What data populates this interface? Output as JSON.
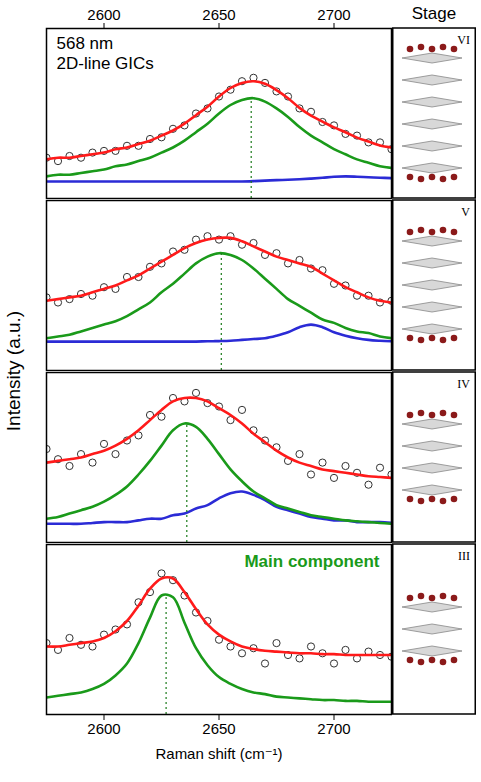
{
  "y_label": "Intensity (a.u.)",
  "header": "Stage",
  "chart_data": [
    {
      "type": "line",
      "stage": "VI",
      "tick_labels": "x",
      "annotations": [
        {
          "text": "568 nm"
        },
        {
          "text": "2D-line GICs"
        }
      ],
      "xlim": [
        2575,
        2725
      ],
      "xticks": [
        2600,
        2650,
        2700
      ],
      "ylim": [
        0,
        1
      ],
      "peak_x": 2664,
      "peak_y": 0.59,
      "x": [
        2575,
        2580,
        2585,
        2590,
        2595,
        2600,
        2605,
        2610,
        2615,
        2620,
        2625,
        2630,
        2635,
        2640,
        2645,
        2650,
        2655,
        2660,
        2665,
        2670,
        2675,
        2680,
        2685,
        2690,
        2695,
        2700,
        2705,
        2710,
        2715,
        2720,
        2725
      ],
      "series": [
        {
          "type": "line",
          "color": "#2b2bd6",
          "values": [
            0.1,
            0.1,
            0.1,
            0.1,
            0.1,
            0.1,
            0.1,
            0.1,
            0.1,
            0.1,
            0.1,
            0.1,
            0.1,
            0.1,
            0.1,
            0.1,
            0.1,
            0.1,
            0.102,
            0.105,
            0.108,
            0.11,
            0.113,
            0.117,
            0.122,
            0.128,
            0.13,
            0.128,
            0.125,
            0.122,
            0.12
          ]
        },
        {
          "type": "line",
          "color": "#1a9a1a",
          "values": [
            0.13,
            0.14,
            0.14,
            0.15,
            0.16,
            0.17,
            0.19,
            0.2,
            0.22,
            0.24,
            0.27,
            0.3,
            0.34,
            0.39,
            0.44,
            0.5,
            0.55,
            0.58,
            0.59,
            0.57,
            0.53,
            0.48,
            0.42,
            0.37,
            0.33,
            0.29,
            0.26,
            0.23,
            0.21,
            0.19,
            0.18
          ]
        },
        {
          "type": "scatter",
          "marker": "circle",
          "color": "#333333",
          "values": [
            0.24,
            0.22,
            0.25,
            0.24,
            0.27,
            0.28,
            0.28,
            0.31,
            0.31,
            0.35,
            0.36,
            0.41,
            0.43,
            0.5,
            0.53,
            0.6,
            0.64,
            0.69,
            0.71,
            0.68,
            0.63,
            0.6,
            0.53,
            0.51,
            0.45,
            0.43,
            0.38,
            0.37,
            0.33,
            0.33,
            0.29
          ]
        },
        {
          "type": "line",
          "color": "#ff1a1a",
          "values": [
            0.23,
            0.24,
            0.24,
            0.25,
            0.26,
            0.27,
            0.29,
            0.3,
            0.32,
            0.34,
            0.37,
            0.4,
            0.44,
            0.49,
            0.54,
            0.6,
            0.65,
            0.68,
            0.69,
            0.675,
            0.638,
            0.59,
            0.533,
            0.487,
            0.452,
            0.418,
            0.39,
            0.358,
            0.335,
            0.312,
            0.3
          ]
        }
      ]
    },
    {
      "type": "line",
      "stage": "V",
      "tick_labels": "x",
      "xlim": [
        2575,
        2725
      ],
      "xticks": [
        2600,
        2650,
        2700
      ],
      "ylim": [
        0,
        1
      ],
      "peak_x": 2651,
      "peak_y": 0.69,
      "x": [
        2575,
        2580,
        2585,
        2590,
        2595,
        2600,
        2605,
        2610,
        2615,
        2620,
        2625,
        2630,
        2635,
        2640,
        2645,
        2650,
        2655,
        2660,
        2665,
        2670,
        2675,
        2680,
        2685,
        2690,
        2695,
        2700,
        2705,
        2710,
        2715,
        2720,
        2725
      ],
      "series": [
        {
          "type": "line",
          "color": "#2b2bd6",
          "values": [
            0.17,
            0.17,
            0.17,
            0.17,
            0.17,
            0.17,
            0.17,
            0.17,
            0.17,
            0.17,
            0.17,
            0.17,
            0.17,
            0.17,
            0.172,
            0.173,
            0.175,
            0.18,
            0.185,
            0.19,
            0.205,
            0.225,
            0.255,
            0.27,
            0.255,
            0.225,
            0.205,
            0.19,
            0.18,
            0.175,
            0.172
          ]
        },
        {
          "type": "line",
          "color": "#1a9a1a",
          "values": [
            0.19,
            0.2,
            0.21,
            0.23,
            0.25,
            0.27,
            0.29,
            0.32,
            0.36,
            0.4,
            0.46,
            0.51,
            0.57,
            0.63,
            0.67,
            0.69,
            0.68,
            0.65,
            0.6,
            0.54,
            0.48,
            0.42,
            0.38,
            0.34,
            0.3,
            0.28,
            0.25,
            0.23,
            0.22,
            0.2,
            0.19
          ]
        },
        {
          "type": "scatter",
          "marker": "circle",
          "color": "#333333",
          "values": [
            0.43,
            0.4,
            0.42,
            0.45,
            0.44,
            0.49,
            0.48,
            0.55,
            0.55,
            0.61,
            0.63,
            0.7,
            0.71,
            0.77,
            0.79,
            0.77,
            0.79,
            0.74,
            0.75,
            0.68,
            0.69,
            0.63,
            0.65,
            0.6,
            0.59,
            0.51,
            0.5,
            0.44,
            0.44,
            0.4,
            0.41
          ]
        },
        {
          "type": "line",
          "color": "#ff1a1a",
          "values": [
            0.41,
            0.42,
            0.43,
            0.44,
            0.46,
            0.48,
            0.5,
            0.53,
            0.56,
            0.6,
            0.64,
            0.68,
            0.72,
            0.75,
            0.77,
            0.78,
            0.78,
            0.76,
            0.73,
            0.7,
            0.67,
            0.65,
            0.63,
            0.61,
            0.57,
            0.53,
            0.49,
            0.46,
            0.43,
            0.41,
            0.4
          ]
        }
      ]
    },
    {
      "type": "line",
      "stage": "IV",
      "tick_labels": "x",
      "xlim": [
        2575,
        2725
      ],
      "xticks": [
        2600,
        2650,
        2700
      ],
      "ylim": [
        0,
        1
      ],
      "peak_x": 2636,
      "peak_y": 0.7,
      "x": [
        2575,
        2580,
        2585,
        2590,
        2595,
        2600,
        2605,
        2610,
        2615,
        2620,
        2625,
        2630,
        2635,
        2640,
        2645,
        2650,
        2655,
        2660,
        2665,
        2670,
        2675,
        2680,
        2685,
        2690,
        2695,
        2700,
        2705,
        2710,
        2715,
        2720,
        2725
      ],
      "series": [
        {
          "type": "line",
          "color": "#2b2bd6",
          "values": [
            0.11,
            0.11,
            0.11,
            0.11,
            0.115,
            0.12,
            0.12,
            0.12,
            0.13,
            0.14,
            0.14,
            0.16,
            0.17,
            0.2,
            0.22,
            0.26,
            0.29,
            0.3,
            0.28,
            0.25,
            0.21,
            0.19,
            0.17,
            0.15,
            0.14,
            0.13,
            0.13,
            0.12,
            0.12,
            0.12,
            0.115
          ]
        },
        {
          "type": "line",
          "color": "#1a9a1a",
          "values": [
            0.14,
            0.15,
            0.17,
            0.19,
            0.21,
            0.24,
            0.28,
            0.33,
            0.4,
            0.48,
            0.57,
            0.66,
            0.7,
            0.68,
            0.61,
            0.52,
            0.43,
            0.36,
            0.3,
            0.26,
            0.22,
            0.2,
            0.18,
            0.16,
            0.15,
            0.14,
            0.13,
            0.125,
            0.12,
            0.115,
            0.11
          ]
        },
        {
          "type": "scatter",
          "marker": "circle",
          "color": "#333333",
          "values": [
            0.55,
            0.49,
            0.45,
            0.52,
            0.47,
            0.58,
            0.52,
            0.6,
            0.63,
            0.75,
            0.74,
            0.85,
            0.83,
            0.88,
            0.82,
            0.8,
            0.72,
            0.78,
            0.66,
            0.6,
            0.56,
            0.48,
            0.52,
            0.4,
            0.47,
            0.38,
            0.45,
            0.41,
            0.34,
            0.44,
            0.4
          ]
        },
        {
          "type": "line",
          "color": "#ff1a1a",
          "values": [
            0.47,
            0.48,
            0.49,
            0.5,
            0.52,
            0.54,
            0.57,
            0.61,
            0.66,
            0.72,
            0.78,
            0.83,
            0.85,
            0.85,
            0.83,
            0.79,
            0.75,
            0.7,
            0.64,
            0.59,
            0.54,
            0.5,
            0.47,
            0.45,
            0.43,
            0.42,
            0.41,
            0.4,
            0.39,
            0.385,
            0.38
          ]
        }
      ]
    },
    {
      "type": "line",
      "stage": "III",
      "tick_labels": "x",
      "annotations": [
        {
          "text": "Main component",
          "color": "#1a9a1a"
        }
      ],
      "xlim": [
        2575,
        2725
      ],
      "xticks": [
        2600,
        2650,
        2700
      ],
      "ylim": [
        0,
        1
      ],
      "x_label": "Raman shift (cm⁻¹)",
      "peak_x": 2627,
      "peak_y": 0.7,
      "x": [
        2575,
        2580,
        2585,
        2590,
        2595,
        2600,
        2605,
        2610,
        2615,
        2620,
        2625,
        2630,
        2635,
        2640,
        2645,
        2650,
        2655,
        2660,
        2665,
        2670,
        2675,
        2680,
        2685,
        2690,
        2695,
        2700,
        2705,
        2710,
        2715,
        2720,
        2725
      ],
      "series": [
        {
          "type": "line",
          "color": "#1a9a1a",
          "values": [
            0.1,
            0.11,
            0.12,
            0.13,
            0.15,
            0.18,
            0.23,
            0.3,
            0.42,
            0.57,
            0.7,
            0.69,
            0.54,
            0.39,
            0.29,
            0.22,
            0.18,
            0.15,
            0.13,
            0.12,
            0.105,
            0.1,
            0.095,
            0.09,
            0.085,
            0.085,
            0.08,
            0.08,
            0.075,
            0.075,
            0.075
          ]
        },
        {
          "type": "scatter",
          "marker": "circle",
          "color": "#333333",
          "values": [
            0.42,
            0.38,
            0.45,
            0.41,
            0.4,
            0.47,
            0.5,
            0.53,
            0.66,
            0.72,
            0.83,
            0.79,
            0.7,
            0.6,
            0.55,
            0.44,
            0.4,
            0.36,
            0.39,
            0.3,
            0.42,
            0.35,
            0.33,
            0.4,
            0.36,
            0.3,
            0.38,
            0.33,
            0.37,
            0.35,
            0.34
          ]
        },
        {
          "type": "line",
          "color": "#ff1a1a",
          "values": [
            0.4,
            0.4,
            0.41,
            0.42,
            0.43,
            0.45,
            0.49,
            0.55,
            0.64,
            0.74,
            0.8,
            0.8,
            0.72,
            0.62,
            0.53,
            0.47,
            0.43,
            0.4,
            0.385,
            0.375,
            0.37,
            0.365,
            0.36,
            0.36,
            0.355,
            0.355,
            0.35,
            0.35,
            0.35,
            0.35,
            0.35
          ]
        }
      ]
    }
  ]
}
